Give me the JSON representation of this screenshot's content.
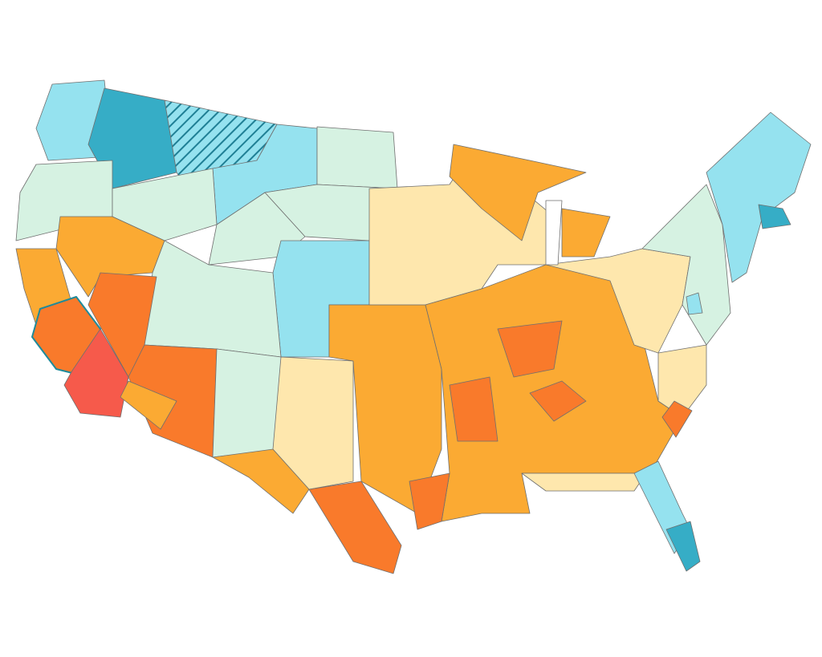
{
  "map": {
    "palette": [
      "#d6f2e2",
      "#95e2ef",
      "#36adc6",
      "#fee7ad",
      "#fbaa33",
      "#f97a2b",
      "#f65a4b"
    ],
    "hatch": "#1f7f95"
  }
}
